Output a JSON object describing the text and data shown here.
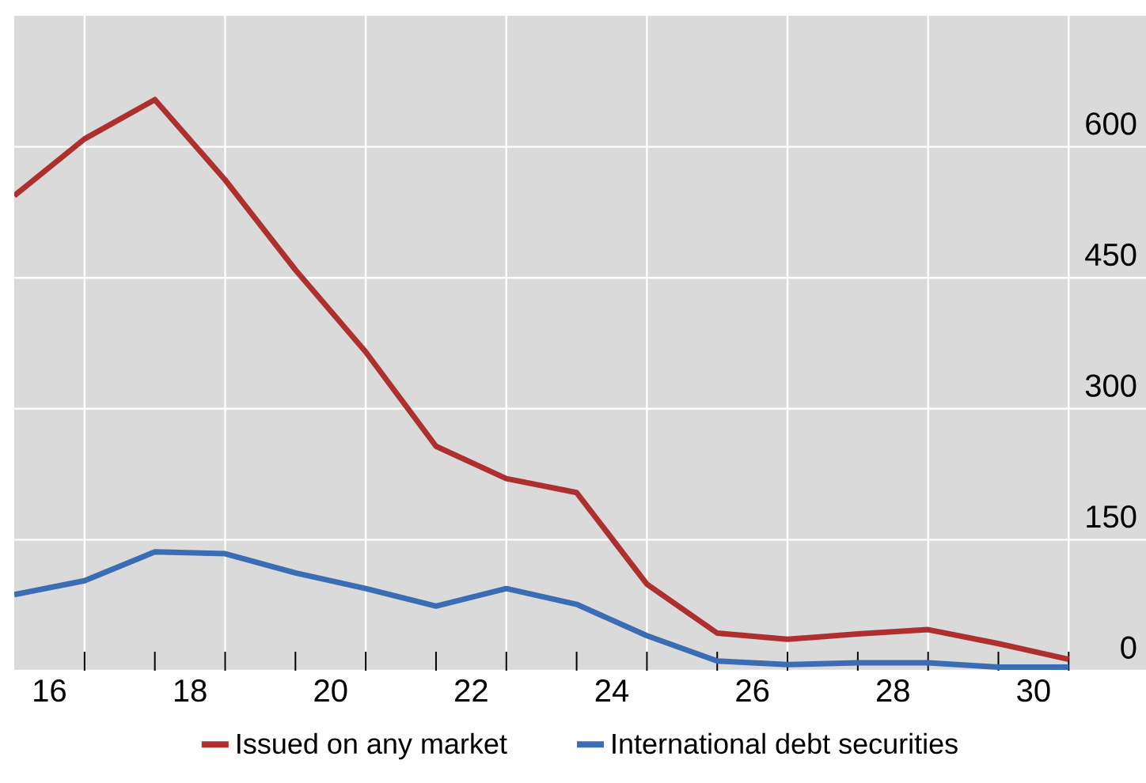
{
  "chart_data": {
    "type": "line",
    "x": [
      15.5,
      16.5,
      17.5,
      18.5,
      19.5,
      20.5,
      21.5,
      22.5,
      23.5,
      24.5,
      25.5,
      26.5,
      27.5,
      28.5,
      29.5,
      30.5
    ],
    "series": [
      {
        "name": "Issued on any market",
        "color": "#ad302e",
        "values": [
          544,
          609,
          654,
          562,
          459,
          365,
          257,
          220,
          204,
          99,
          43,
          36,
          42,
          47,
          31,
          13
        ]
      },
      {
        "name": "International debt securities",
        "color": "#3a6db3",
        "values": [
          87,
          103,
          136,
          134,
          112,
          94,
          74,
          94,
          76,
          40,
          11,
          7,
          9,
          9,
          4,
          4
        ]
      }
    ],
    "xlim": [
      15.5,
      31.6
    ],
    "xticks": [
      16,
      {
        "value": 16.5,
        "label": null
      },
      {
        "value": 17.5,
        "label": null
      },
      18,
      {
        "value": 18.5,
        "label": null
      },
      {
        "value": 19.5,
        "label": null
      },
      20,
      {
        "value": 20.5,
        "label": null
      },
      {
        "value": 21.5,
        "label": null
      },
      22,
      {
        "value": 22.5,
        "label": null
      },
      {
        "value": 23.5,
        "label": null
      },
      24,
      {
        "value": 24.5,
        "label": null
      },
      {
        "value": 25.5,
        "label": null
      },
      26,
      {
        "value": 26.5,
        "label": null
      },
      {
        "value": 27.5,
        "label": null
      },
      28,
      {
        "value": 28.5,
        "label": null
      },
      {
        "value": 29.5,
        "label": null
      },
      30,
      {
        "value": 30.5,
        "label": null
      }
    ],
    "ylim": [
      0,
      750
    ],
    "yticks": [
      0,
      150,
      300,
      450,
      600
    ],
    "grid": true,
    "legend": "bottom",
    "marker": "none",
    "line_style": "solid"
  }
}
